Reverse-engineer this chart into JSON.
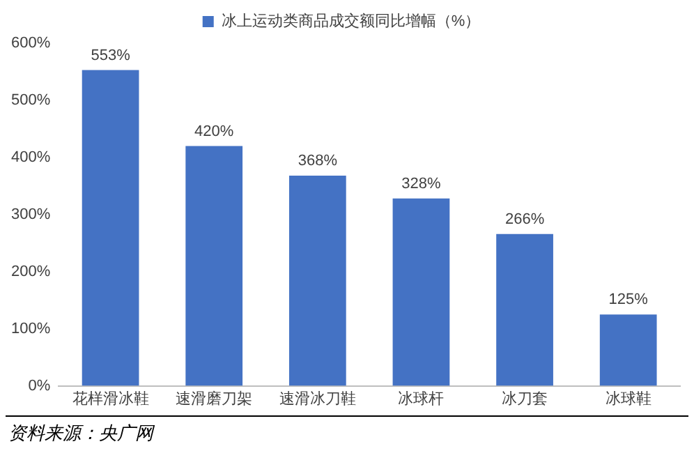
{
  "chart_data": {
    "type": "bar",
    "categories": [
      "花样滑冰鞋",
      "速滑磨刀架",
      "速滑冰刀鞋",
      "冰球杆",
      "冰刀套",
      "冰球鞋"
    ],
    "series": [
      {
        "name": "冰上运动类商品成交额同比增幅（%）",
        "color": "#4472c4",
        "values": [
          553,
          420,
          368,
          328,
          266,
          125
        ],
        "value_labels": [
          "553%",
          "420%",
          "368%",
          "328%",
          "266%",
          "125%"
        ]
      }
    ],
    "ylim": [
      0,
      600
    ],
    "yticks": [
      {
        "value": 0,
        "label": "0%"
      },
      {
        "value": 100,
        "label": "100%"
      },
      {
        "value": 200,
        "label": "200%"
      },
      {
        "value": 300,
        "label": "300%"
      },
      {
        "value": 400,
        "label": "400%"
      },
      {
        "value": 500,
        "label": "500%"
      },
      {
        "value": 600,
        "label": "600%"
      }
    ],
    "grid": false,
    "legend": "top",
    "annotations": [
      "资料来源：央广网"
    ]
  }
}
